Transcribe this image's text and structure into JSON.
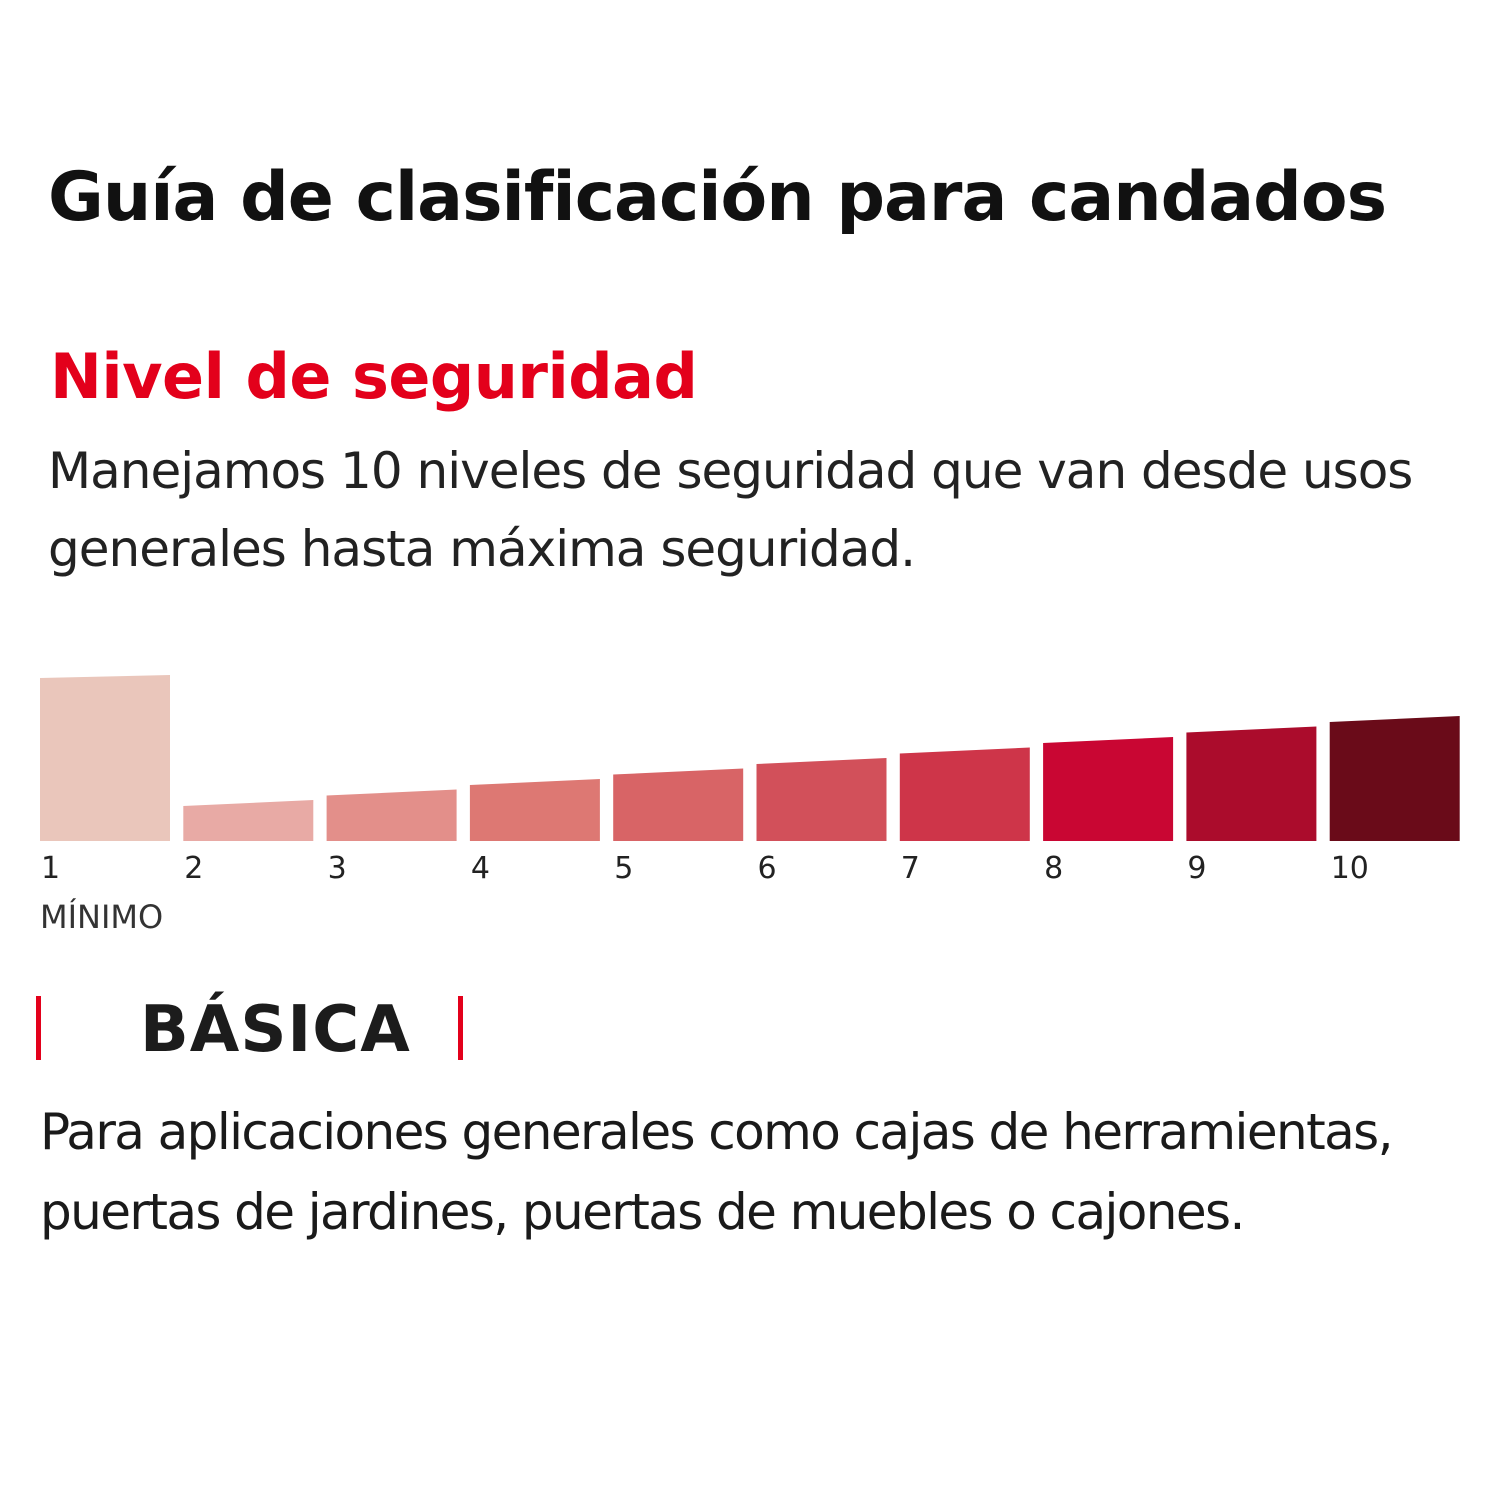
{
  "page": {
    "title": "Guía de clasificación para candados",
    "section_heading": "Nivel de seguridad",
    "intro": "Manejamos 10 niveles de seguridad que van desde usos generales hasta máxima seguridad.",
    "accent_color": "#e3001b"
  },
  "chart_data": {
    "type": "bar",
    "categories": [
      "1",
      "2",
      "3",
      "4",
      "5",
      "6",
      "7",
      "8",
      "9",
      "10"
    ],
    "highlighted": "1",
    "min_label": "MÍNIMO",
    "colors": [
      "#eac6bb",
      "#e8aaa5",
      "#e38f8a",
      "#dd7873",
      "#d86466",
      "#d2505a",
      "#ce3549",
      "#c90633",
      "#ab0c2c",
      "#6a0b19"
    ]
  },
  "tier": {
    "name": "BÁSICA",
    "marker_color": "#e3001b",
    "description": "Para aplicaciones generales como cajas de herramientas, puertas de jardines, puertas de muebles o cajones."
  }
}
